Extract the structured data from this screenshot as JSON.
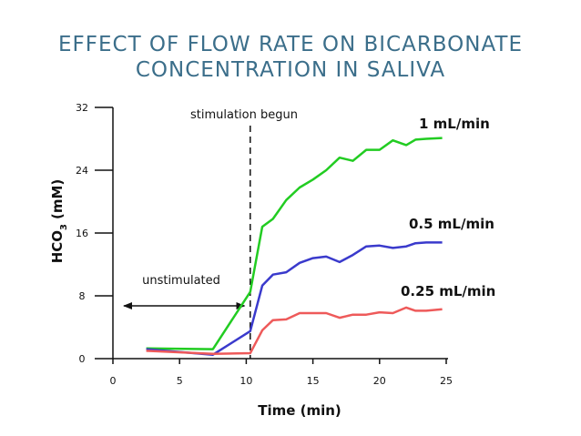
{
  "title": {
    "line1": "EFFECT OF FLOW RATE ON BICARBONATE",
    "line2": "CONCENTRATION IN SALIVA"
  },
  "colors": {
    "title": "#3b6e8a",
    "high_flow": "#22cc22",
    "mid_flow": "#3a3acc",
    "low_flow": "#ee5a5a",
    "axis": "#111111"
  },
  "chart_data": {
    "type": "line",
    "title": "",
    "xlabel": "Time (min)",
    "ylabel_main": "HCO",
    "ylabel_sub": "3",
    "ylabel_unit": "(mM)",
    "xlim": [
      0,
      25
    ],
    "ylim": [
      0,
      32
    ],
    "xticks": [
      0,
      5,
      10,
      15,
      20,
      25
    ],
    "yticks": [
      0,
      8,
      16,
      24,
      32
    ],
    "grid": false,
    "legend": "inline labels at line ends",
    "series": [
      {
        "name": "1 mL/min",
        "color": "#22cc22",
        "x": [
          2.5,
          7.5,
          10.3,
          11.2,
          12,
          13,
          14,
          15,
          16,
          17,
          18,
          19,
          20,
          21,
          22,
          22.7,
          23.5,
          24.7
        ],
        "y": [
          1.3,
          1.2,
          8.5,
          16.8,
          17.8,
          20.2,
          21.8,
          22.8,
          24,
          25.6,
          25.2,
          26.6,
          26.6,
          27.8,
          27.2,
          27.9,
          28.0,
          28.1
        ]
      },
      {
        "name": "0.5 mL/min",
        "color": "#3a3acc",
        "x": [
          2.5,
          7.5,
          10.3,
          11.2,
          12,
          13,
          14,
          15,
          16,
          17,
          18,
          19,
          20,
          21,
          22,
          22.7,
          23.5,
          24.7
        ],
        "y": [
          1.2,
          0.5,
          3.5,
          9.3,
          10.7,
          11.0,
          12.2,
          12.8,
          13.0,
          12.3,
          13.2,
          14.3,
          14.4,
          14.1,
          14.3,
          14.7,
          14.8,
          14.8
        ]
      },
      {
        "name": "0.25 mL/min",
        "color": "#ee5a5a",
        "x": [
          2.5,
          7.5,
          10.3,
          11.2,
          12,
          13,
          14,
          15,
          16,
          17,
          18,
          19,
          20,
          21,
          22,
          22.7,
          23.5,
          24.7
        ],
        "y": [
          1.0,
          0.6,
          0.7,
          3.6,
          4.9,
          5.0,
          5.8,
          5.8,
          5.8,
          5.2,
          5.6,
          5.6,
          5.9,
          5.8,
          6.5,
          6.1,
          6.1,
          6.3
        ]
      }
    ],
    "annotations": {
      "stimulation_label": "stimulation begun",
      "stimulation_x": 10.3,
      "unstimulated_label": "unstimulated",
      "unstimulated_range": [
        0,
        10
      ]
    }
  }
}
